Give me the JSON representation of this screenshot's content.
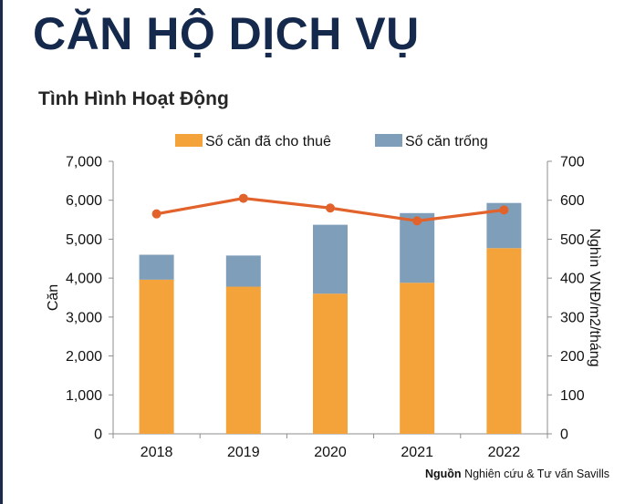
{
  "page": {
    "title": "CĂN HỘ DỊCH VỤ",
    "source_label": "Nguồn",
    "source_text": "Nghiên cứu & Tư vấn Savills"
  },
  "chart_data": {
    "type": "bar",
    "title": "Tình Hình Hoạt Động",
    "categories": [
      "2018",
      "2019",
      "2020",
      "2021",
      "2022"
    ],
    "series": [
      {
        "name": "Số căn đã cho thuê",
        "kind": "stacked-bar",
        "axis": "left",
        "color": "#f4a23a",
        "values": [
          3960,
          3780,
          3600,
          3880,
          4770
        ]
      },
      {
        "name": "Số căn trống",
        "kind": "stacked-bar",
        "axis": "left",
        "color": "#7f9eba",
        "values": [
          640,
          800,
          1770,
          1790,
          1160
        ]
      },
      {
        "kind": "line",
        "axis": "right",
        "color": "#e2622b",
        "values": [
          565,
          605,
          580,
          547,
          575
        ]
      }
    ],
    "ylabel": "Căn",
    "ylabel_right": "Nghìn VNĐ/m2/tháng",
    "ylim": [
      0,
      7000
    ],
    "ylim_right": [
      0,
      700
    ],
    "yticks": [
      "0",
      "1,000",
      "2,000",
      "3,000",
      "4,000",
      "5,000",
      "6,000",
      "7,000"
    ],
    "yticks_right": [
      "0",
      "100",
      "200",
      "300",
      "400",
      "500",
      "600",
      "700"
    ],
    "legend_position": "top",
    "grid": false
  }
}
